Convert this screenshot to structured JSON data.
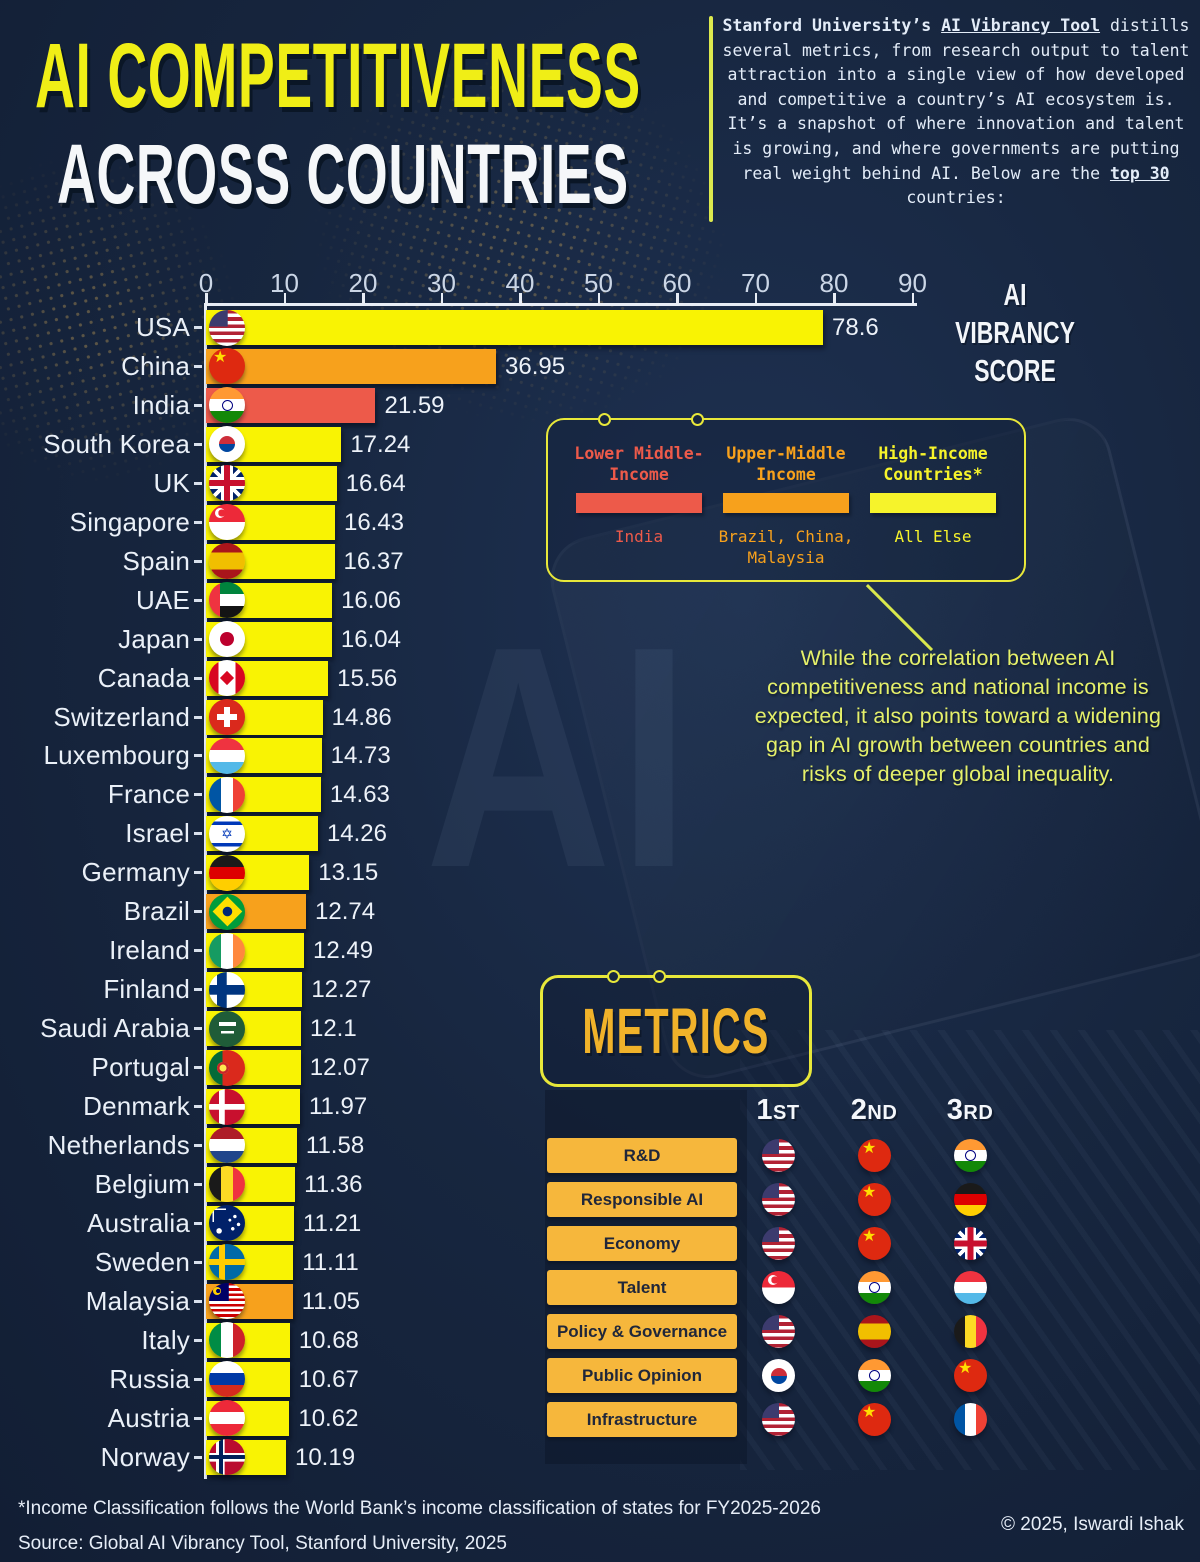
{
  "header": {
    "title_line1": "AI COMPETITIVENESS",
    "title_line2": "ACROSS COUNTRIES"
  },
  "intro": {
    "lead": "Stanford University’s ",
    "link": "AI Vibrancy Tool",
    "body": " distills several metrics, from research output to talent attraction into a single view of how developed and competitive a country’s AI ecosystem is. It’s a snapshot of where innovation and talent is growing, and where governments are putting real weight behind AI. Below are the ",
    "top30": "top 30",
    "tail": " countries:"
  },
  "chart_data": {
    "type": "bar",
    "title": "AI VIBRANCY SCORE",
    "xlabel": "AI Vibrancy Score",
    "xlim": [
      0,
      90
    ],
    "axis": {
      "ticks": [
        0,
        10,
        20,
        30,
        40,
        50,
        60,
        70,
        80,
        90
      ]
    },
    "grid": false,
    "income_colors": {
      "high": "#F9F303",
      "upper_middle": "#F7A11C",
      "lower_middle": "#ED5A4A"
    },
    "countries": [
      {
        "name": "USA",
        "value": "78.6",
        "group": "high",
        "flag": "usa"
      },
      {
        "name": "China",
        "value": "36.95",
        "group": "upper_middle",
        "flag": "china"
      },
      {
        "name": "India",
        "value": "21.59",
        "group": "lower_middle",
        "flag": "india"
      },
      {
        "name": "South Korea",
        "value": "17.24",
        "group": "high",
        "flag": "southkorea"
      },
      {
        "name": "UK",
        "value": "16.64",
        "group": "high",
        "flag": "uk"
      },
      {
        "name": "Singapore",
        "value": "16.43",
        "group": "high",
        "flag": "singapore"
      },
      {
        "name": "Spain",
        "value": "16.37",
        "group": "high",
        "flag": "spain"
      },
      {
        "name": "UAE",
        "value": "16.06",
        "group": "high",
        "flag": "uae"
      },
      {
        "name": "Japan",
        "value": "16.04",
        "group": "high",
        "flag": "japan"
      },
      {
        "name": "Canada",
        "value": "15.56",
        "group": "high",
        "flag": "canada"
      },
      {
        "name": "Switzerland",
        "value": "14.86",
        "group": "high",
        "flag": "switzerland"
      },
      {
        "name": "Luxembourg",
        "value": "14.73",
        "group": "high",
        "flag": "luxembourg"
      },
      {
        "name": "France",
        "value": "14.63",
        "group": "high",
        "flag": "france"
      },
      {
        "name": "Israel",
        "value": "14.26",
        "group": "high",
        "flag": "israel"
      },
      {
        "name": "Germany",
        "value": "13.15",
        "group": "high",
        "flag": "germany"
      },
      {
        "name": "Brazil",
        "value": "12.74",
        "group": "upper_middle",
        "flag": "brazil"
      },
      {
        "name": "Ireland",
        "value": "12.49",
        "group": "high",
        "flag": "ireland"
      },
      {
        "name": "Finland",
        "value": "12.27",
        "group": "high",
        "flag": "finland"
      },
      {
        "name": "Saudi Arabia",
        "value": "12.1",
        "group": "high",
        "flag": "saudiarabia"
      },
      {
        "name": "Portugal",
        "value": "12.07",
        "group": "high",
        "flag": "portugal"
      },
      {
        "name": "Denmark",
        "value": "11.97",
        "group": "high",
        "flag": "denmark"
      },
      {
        "name": "Netherlands",
        "value": "11.58",
        "group": "high",
        "flag": "netherlands"
      },
      {
        "name": "Belgium",
        "value": "11.36",
        "group": "high",
        "flag": "belgium"
      },
      {
        "name": "Australia",
        "value": "11.21",
        "group": "high",
        "flag": "australia"
      },
      {
        "name": "Sweden",
        "value": "11.11",
        "group": "high",
        "flag": "sweden"
      },
      {
        "name": "Malaysia",
        "value": "11.05",
        "group": "upper_middle",
        "flag": "malaysia"
      },
      {
        "name": "Italy",
        "value": "10.68",
        "group": "high",
        "flag": "italy"
      },
      {
        "name": "Russia",
        "value": "10.67",
        "group": "high",
        "flag": "russia"
      },
      {
        "name": "Austria",
        "value": "10.62",
        "group": "high",
        "flag": "austria"
      },
      {
        "name": "Norway",
        "value": "10.19",
        "group": "high",
        "flag": "norway"
      }
    ]
  },
  "legend": {
    "items": [
      {
        "title": "Lower Middle-Income",
        "countries": "India",
        "color": "#ED5A4A"
      },
      {
        "title": "Upper-Middle Income",
        "countries": "Brazil, China, Malaysia",
        "color": "#F7A11C"
      },
      {
        "title": "High-Income Countries*",
        "countries": "All Else",
        "color": "#F6F32B"
      }
    ]
  },
  "annotation": {
    "text": "While the correlation between AI competitiveness and national income is expected, it also points toward a widening gap in AI growth between countries and risks of deeper global inequality."
  },
  "metrics": {
    "heading": "METRICS",
    "columns": [
      "1st",
      "2nd",
      "3rd"
    ],
    "rows": [
      {
        "label": "R&D",
        "flags": [
          "usa",
          "china",
          "india"
        ]
      },
      {
        "label": "Responsible AI",
        "flags": [
          "usa",
          "china",
          "germany"
        ]
      },
      {
        "label": "Economy",
        "flags": [
          "usa",
          "china",
          "uk"
        ]
      },
      {
        "label": "Talent",
        "flags": [
          "singapore",
          "india",
          "luxembourg"
        ]
      },
      {
        "label": "Policy & Governance",
        "flags": [
          "usa",
          "spain",
          "belgium"
        ]
      },
      {
        "label": "Public Opinion",
        "flags": [
          "southkorea",
          "india",
          "china"
        ]
      },
      {
        "label": "Infrastructure",
        "flags": [
          "usa",
          "china",
          "france"
        ]
      }
    ]
  },
  "footer": {
    "note": "*Income Classification follows the World Bank’s income classification of states for FY2025-2026",
    "source": "Source: Global AI Vibrancy Tool, Stanford University, 2025",
    "copyright": "© 2025, Iswardi Ishak"
  }
}
